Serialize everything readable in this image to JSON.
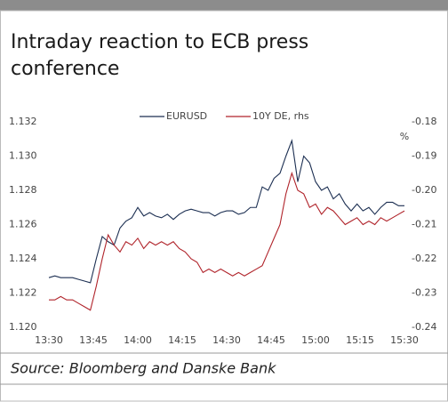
{
  "chart_data": {
    "type": "line",
    "title": "Intraday reaction to ECB press conference",
    "y2_label": "%",
    "source": "Source: Bloomberg and Danske Bank",
    "legend": "top",
    "x": [
      "13:30",
      "13:32",
      "13:34",
      "13:36",
      "13:38",
      "13:40",
      "13:42",
      "13:44",
      "13:46",
      "13:48",
      "13:50",
      "13:52",
      "13:54",
      "13:56",
      "13:58",
      "14:00",
      "14:02",
      "14:04",
      "14:06",
      "14:08",
      "14:10",
      "14:12",
      "14:14",
      "14:16",
      "14:18",
      "14:20",
      "14:22",
      "14:24",
      "14:26",
      "14:28",
      "14:30",
      "14:32",
      "14:34",
      "14:36",
      "14:38",
      "14:40",
      "14:42",
      "14:44",
      "14:46",
      "14:48",
      "14:50",
      "14:52",
      "14:54",
      "14:56",
      "14:58",
      "15:00",
      "15:02",
      "15:04",
      "15:06",
      "15:08",
      "15:10",
      "15:12",
      "15:14",
      "15:16",
      "15:18",
      "15:20",
      "15:22",
      "15:24",
      "15:26",
      "15:28",
      "15:30"
    ],
    "xticks": [
      "13:30",
      "13:45",
      "14:00",
      "14:15",
      "14:30",
      "14:45",
      "15:00",
      "15:15",
      "15:30"
    ],
    "ylim": [
      1.12,
      1.132
    ],
    "yticks": [
      {
        "value": 1.12,
        "label": "1.120"
      },
      1.122,
      1.124,
      1.126,
      1.128,
      {
        "value": 1.13,
        "label": "1.130"
      },
      1.132
    ],
    "y2lim": [
      -0.24,
      -0.18
    ],
    "y2ticks": [
      -0.24,
      -0.23,
      -0.22,
      -0.21,
      {
        "value": -0.2,
        "label": "-0.20"
      },
      -0.19,
      -0.18
    ],
    "series": [
      {
        "name": "EURUSD",
        "color": "#1c2f52",
        "values": [
          1.1229,
          1.123,
          1.1229,
          1.1229,
          1.1229,
          1.1228,
          1.1227,
          1.1226,
          1.124,
          1.1253,
          1.125,
          1.1248,
          1.1258,
          1.1262,
          1.1264,
          1.127,
          1.1265,
          1.1267,
          1.1265,
          1.1264,
          1.1266,
          1.1263,
          1.1266,
          1.1268,
          1.1269,
          1.1268,
          1.1267,
          1.1267,
          1.1265,
          1.1267,
          1.1268,
          1.1268,
          1.1266,
          1.1267,
          1.127,
          1.127,
          1.1282,
          1.128,
          1.1287,
          1.129,
          1.13,
          1.1309,
          1.1285,
          1.13,
          1.1296,
          1.1285,
          1.128,
          1.1282,
          1.1275,
          1.1278,
          1.1272,
          1.1268,
          1.1272,
          1.1268,
          1.127,
          1.1266,
          1.127,
          1.1273,
          1.1273,
          1.1271,
          1.1271
        ]
      },
      {
        "name": "10Y DE, rhs",
        "color": "#b0232a",
        "axis": "y2",
        "values": [
          -0.232,
          -0.232,
          -0.231,
          -0.232,
          -0.232,
          -0.233,
          -0.234,
          -0.235,
          -0.228,
          -0.22,
          -0.213,
          -0.216,
          -0.218,
          -0.215,
          -0.216,
          -0.214,
          -0.217,
          -0.215,
          -0.216,
          -0.215,
          -0.216,
          -0.215,
          -0.217,
          -0.218,
          -0.22,
          -0.221,
          -0.224,
          -0.223,
          -0.224,
          -0.223,
          -0.224,
          -0.225,
          -0.224,
          -0.225,
          -0.224,
          -0.223,
          -0.222,
          -0.218,
          -0.214,
          -0.21,
          -0.201,
          -0.195,
          -0.2,
          -0.201,
          -0.205,
          -0.204,
          -0.207,
          -0.205,
          -0.206,
          -0.208,
          -0.21,
          -0.209,
          -0.208,
          -0.21,
          -0.209,
          -0.21,
          -0.208,
          -0.209,
          -0.208,
          -0.207,
          -0.206
        ]
      }
    ]
  }
}
